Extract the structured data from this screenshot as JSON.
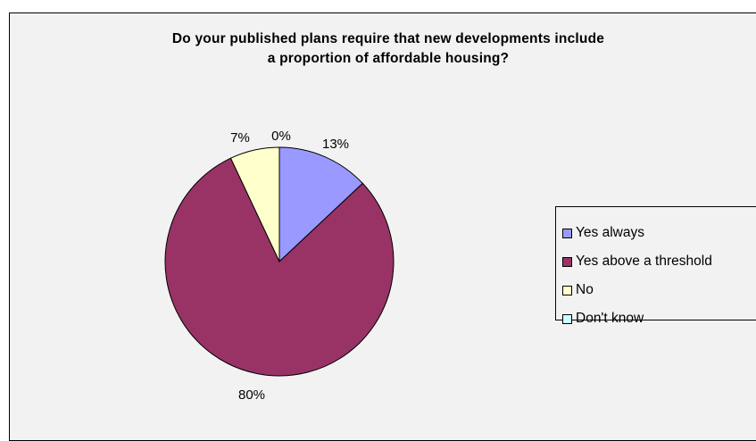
{
  "chart_data": {
    "type": "pie",
    "title_lines": [
      "Do your published plans require that new developments include",
      "a proportion of affordable housing?"
    ],
    "slices": [
      {
        "label": "Yes always",
        "value": 13,
        "value_label": "13%",
        "color": "#9999ff"
      },
      {
        "label": "Yes above a threshold",
        "value": 80,
        "value_label": "80%",
        "color": "#993366"
      },
      {
        "label": "No",
        "value": 7,
        "value_label": "7%",
        "color": "#ffffcc"
      },
      {
        "label": "Don't know",
        "value": 0,
        "value_label": "0%",
        "color": "#ccffff"
      }
    ],
    "legend_placement": "right",
    "background": "#f2f2f2"
  }
}
